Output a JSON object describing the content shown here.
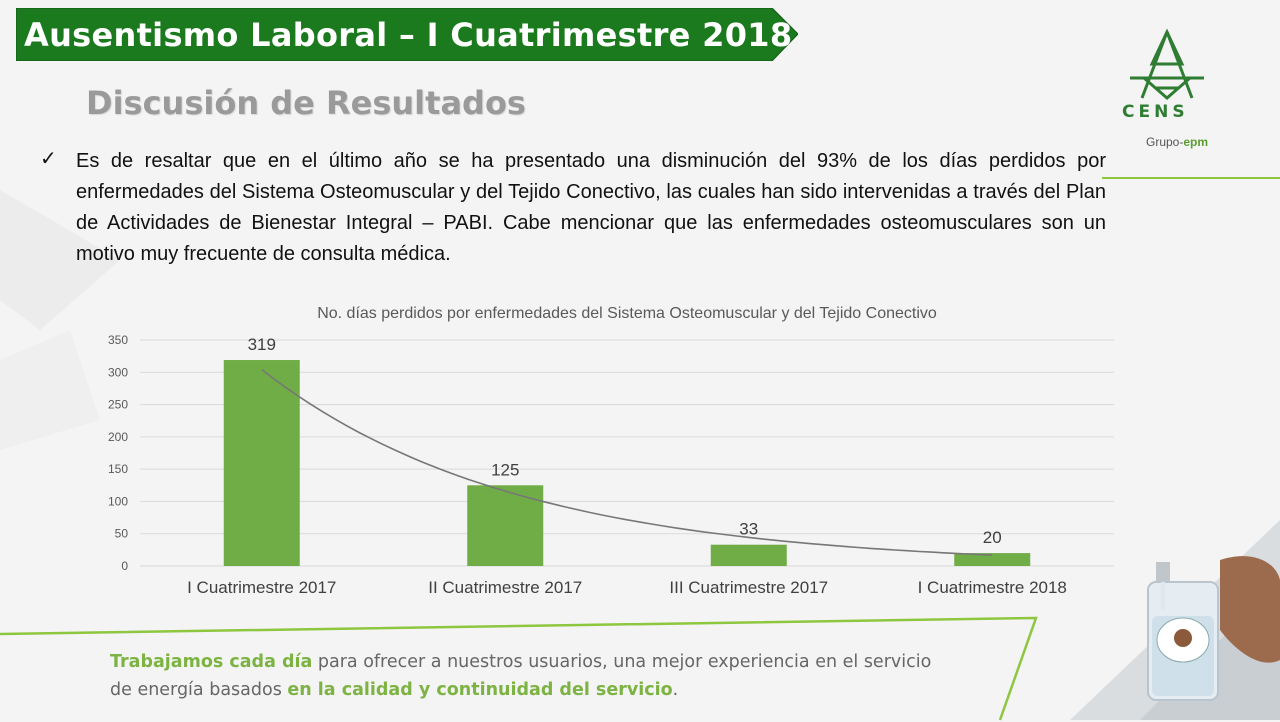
{
  "header": {
    "title": "Ausentismo Laboral – I Cuatrimestre 2018",
    "subtitle": "Discusión de Resultados"
  },
  "logo": {
    "name": "CENS",
    "group_prefix": "Grupo-",
    "group_brand": "epm"
  },
  "body": {
    "bullet_symbol": "✓",
    "paragraph": "Es de resaltar que en el último año se ha presentado una disminución del 93% de los días perdidos por enfermedades del Sistema Osteomuscular y del Tejido Conectivo, las cuales han sido intervenidas a través del Plan de Actividades de Bienestar Integral – PABI. Cabe mencionar que las enfermedades osteomusculares son un motivo muy frecuente de consulta médica."
  },
  "footer": {
    "part1_bold": "Trabajamos cada día",
    "part2": " para ofrecer a nuestros usuarios, una mejor experiencia en el servicio de energía basados ",
    "part3_bold": "en la calidad y continuidad del servicio",
    "part4": "."
  },
  "colors": {
    "banner_green": "#1b7a1e",
    "bar_green": "#70ad47",
    "accent_light_green": "#8dc63f",
    "trendline": "#777777"
  },
  "chart_data": {
    "type": "bar",
    "title": "No. días perdidos por enfermedades del Sistema Osteomuscular y del Tejido Conectivo",
    "categories": [
      "I Cuatrimestre 2017",
      "II Cuatrimestre 2017",
      "III Cuatrimestre 2017",
      "I Cuatrimestre 2018"
    ],
    "values": [
      319,
      125,
      33,
      20
    ],
    "data_labels": [
      "319",
      "125",
      "33",
      "20"
    ],
    "ylim": [
      0,
      350
    ],
    "yticks": [
      0,
      50,
      100,
      150,
      200,
      250,
      300,
      350
    ],
    "grid": true,
    "trendline": "exponential",
    "xlabel": "",
    "ylabel": ""
  }
}
